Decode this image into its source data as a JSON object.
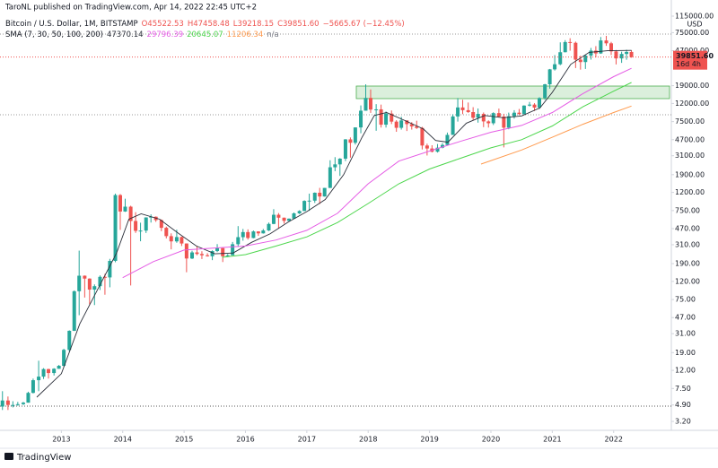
{
  "header": {
    "author_line": "TaroNL published on TradingView.com, Apr 14, 2022 22:45 UTC+2",
    "logo_text": "TradingView"
  },
  "chart_data": {
    "type": "candlestick",
    "symbol": "Bitcoin / U.S. Dollar, 1M, BITSTAMP",
    "readout": [
      "O45522.53",
      "H47458.48",
      "L39218.15",
      "C39851.60",
      "−5665.67 (−12.45%)"
    ],
    "indicator": {
      "name": "SMA (7, 30, 50, 100, 200)",
      "values": [
        "47370.14",
        "29796.39",
        "20645.07",
        "11206.34",
        "n/a"
      ]
    },
    "y_unit": "USD",
    "last_price_label": "39851.60",
    "countdown": "16d 4h",
    "log_scale": true,
    "up_color": "#26a69a",
    "down_color": "#ef5350",
    "xlim": [
      2012.0,
      2022.94
    ],
    "xticks": [
      2013,
      2014,
      2015,
      2016,
      2017,
      2018,
      2019,
      2020,
      2021,
      2022
    ],
    "ylim": [
      2.54,
      174600
    ],
    "yticks": [
      {
        "value": 3.2,
        "label": "3.20"
      },
      {
        "value": 4.9,
        "label": "4.90"
      },
      {
        "value": 7.5,
        "label": "7.50"
      },
      {
        "value": 12,
        "label": "12.00"
      },
      {
        "value": 19,
        "label": "19.00"
      },
      {
        "value": 31,
        "label": "31.00"
      },
      {
        "value": 47,
        "label": "47.00"
      },
      {
        "value": 75,
        "label": "75.00"
      },
      {
        "value": 120,
        "label": "120.00"
      },
      {
        "value": 190,
        "label": "190.00"
      },
      {
        "value": 310,
        "label": "310.00"
      },
      {
        "value": 470,
        "label": "470.00"
      },
      {
        "value": 750,
        "label": "750.00"
      },
      {
        "value": 1200,
        "label": "1200.00"
      },
      {
        "value": 1900,
        "label": "1900.00"
      },
      {
        "value": 3100,
        "label": "3100.00"
      },
      {
        "value": 4700,
        "label": "4700.00"
      },
      {
        "value": 7500,
        "label": "7500.00"
      },
      {
        "value": 12000,
        "label": "12000.00"
      },
      {
        "value": 19000,
        "label": "19000.00"
      },
      {
        "value": 47000,
        "label": "47000.00"
      },
      {
        "value": 75000,
        "label": "75000.00"
      },
      {
        "value": 115000,
        "label": "115000.00"
      }
    ],
    "candles": [
      [
        2012.04,
        4.7,
        7.0,
        4.3,
        5.5
      ],
      [
        2012.13,
        5.5,
        6.1,
        4.3,
        4.9
      ],
      [
        2012.21,
        4.9,
        5.4,
        4.6,
        4.9
      ],
      [
        2012.29,
        4.9,
        5.3,
        4.8,
        5.0
      ],
      [
        2012.38,
        5.0,
        5.3,
        4.9,
        5.2
      ],
      [
        2012.46,
        5.2,
        6.9,
        5.2,
        6.7
      ],
      [
        2012.54,
        6.7,
        9.7,
        6.6,
        9.3
      ],
      [
        2012.63,
        9.3,
        15.4,
        7.0,
        10.2
      ],
      [
        2012.71,
        10.2,
        12.7,
        9.6,
        12.4
      ],
      [
        2012.79,
        12.4,
        12.5,
        9.7,
        11.2
      ],
      [
        2012.88,
        11.2,
        12.7,
        10.5,
        12.5
      ],
      [
        2012.96,
        12.5,
        13.8,
        12.5,
        13.5
      ],
      [
        2013.04,
        13.5,
        21,
        13.2,
        20.4
      ],
      [
        2013.13,
        20.4,
        33.8,
        19.6,
        33.4
      ],
      [
        2013.21,
        33.4,
        95,
        33.2,
        93
      ],
      [
        2013.29,
        93,
        266,
        50,
        139
      ],
      [
        2013.38,
        139,
        140,
        79,
        129
      ],
      [
        2013.46,
        129,
        130,
        66,
        97
      ],
      [
        2013.54,
        97,
        111,
        65,
        106
      ],
      [
        2013.63,
        106,
        140,
        96,
        135
      ],
      [
        2013.71,
        135,
        146,
        85,
        133
      ],
      [
        2013.79,
        133,
        215,
        103,
        204
      ],
      [
        2013.88,
        204,
        1163,
        197,
        1120
      ],
      [
        2013.96,
        1120,
        1150,
        455,
        732
      ],
      [
        2014.04,
        732,
        1020,
        725,
        830
      ],
      [
        2014.13,
        830,
        850,
        108,
        573
      ],
      [
        2014.21,
        573,
        720,
        421,
        444
      ],
      [
        2014.29,
        444,
        548,
        339,
        447
      ],
      [
        2014.38,
        447,
        630,
        420,
        628
      ],
      [
        2014.46,
        628,
        680,
        550,
        640
      ],
      [
        2014.54,
        640,
        645,
        560,
        586
      ],
      [
        2014.63,
        586,
        597,
        440,
        480
      ],
      [
        2014.71,
        480,
        495,
        365,
        387
      ],
      [
        2014.79,
        387,
        416,
        275,
        338
      ],
      [
        2014.88,
        338,
        458,
        326,
        378
      ],
      [
        2014.96,
        378,
        382,
        300,
        320
      ],
      [
        2015.04,
        320,
        321,
        152,
        217
      ],
      [
        2015.13,
        217,
        265,
        214,
        254
      ],
      [
        2015.21,
        254,
        300,
        236,
        244
      ],
      [
        2015.29,
        244,
        262,
        214,
        236
      ],
      [
        2015.38,
        236,
        249,
        228,
        230
      ],
      [
        2015.46,
        230,
        268,
        208,
        263
      ],
      [
        2015.54,
        263,
        315,
        256,
        284
      ],
      [
        2015.63,
        284,
        285,
        198,
        230
      ],
      [
        2015.71,
        230,
        243,
        225,
        236
      ],
      [
        2015.79,
        236,
        333,
        236,
        314
      ],
      [
        2015.88,
        314,
        502,
        292,
        377
      ],
      [
        2015.96,
        377,
        466,
        344,
        430
      ],
      [
        2016.04,
        430,
        461,
        354,
        369
      ],
      [
        2016.13,
        369,
        448,
        366,
        437
      ],
      [
        2016.21,
        437,
        439,
        390,
        416
      ],
      [
        2016.29,
        416,
        466,
        413,
        448
      ],
      [
        2016.38,
        448,
        550,
        442,
        531
      ],
      [
        2016.46,
        531,
        778,
        527,
        673
      ],
      [
        2016.54,
        673,
        703,
        470,
        624
      ],
      [
        2016.63,
        624,
        626,
        535,
        575
      ],
      [
        2016.71,
        575,
        611,
        570,
        609
      ],
      [
        2016.79,
        609,
        714,
        604,
        698
      ],
      [
        2016.88,
        698,
        756,
        686,
        742
      ],
      [
        2016.96,
        742,
        979,
        740,
        963
      ],
      [
        2017.04,
        963,
        1163,
        745,
        970
      ],
      [
        2017.13,
        970,
        1200,
        915,
        1190
      ],
      [
        2017.21,
        1190,
        1350,
        890,
        1080
      ],
      [
        2017.29,
        1080,
        1350,
        1075,
        1348
      ],
      [
        2017.38,
        1348,
        2760,
        1348,
        2300
      ],
      [
        2017.46,
        2300,
        2990,
        2080,
        2480
      ],
      [
        2017.54,
        2480,
        2917,
        1840,
        2875
      ],
      [
        2017.63,
        2875,
        4770,
        2700,
        4735
      ],
      [
        2017.71,
        4735,
        4980,
        2950,
        4340
      ],
      [
        2017.79,
        4340,
        6470,
        4140,
        6450
      ],
      [
        2017.88,
        6450,
        11400,
        5550,
        9950
      ],
      [
        2017.96,
        9950,
        19666,
        9950,
        13850
      ],
      [
        2018.04,
        13850,
        17250,
        9400,
        10250
      ],
      [
        2018.13,
        10250,
        11790,
        5920,
        10300
      ],
      [
        2018.21,
        10300,
        11650,
        6430,
        6930
      ],
      [
        2018.29,
        6930,
        9750,
        6430,
        9240
      ],
      [
        2018.38,
        9240,
        10000,
        7040,
        7500
      ],
      [
        2018.46,
        7500,
        7780,
        5760,
        6390
      ],
      [
        2018.54,
        6390,
        8500,
        6100,
        7730
      ],
      [
        2018.63,
        7730,
        7750,
        5880,
        7030
      ],
      [
        2018.71,
        7030,
        7400,
        6100,
        6630
      ],
      [
        2018.79,
        6630,
        7680,
        6210,
        6370
      ],
      [
        2018.88,
        6370,
        6550,
        3650,
        4040
      ],
      [
        2018.96,
        4040,
        4240,
        3120,
        3740
      ],
      [
        2019.04,
        3740,
        4070,
        3380,
        3440
      ],
      [
        2019.13,
        3440,
        4200,
        3370,
        3820
      ],
      [
        2019.21,
        3820,
        4300,
        3760,
        4100
      ],
      [
        2019.29,
        4100,
        5650,
        4060,
        5320
      ],
      [
        2019.38,
        5320,
        9080,
        5320,
        8570
      ],
      [
        2019.46,
        8570,
        13800,
        7500,
        10820
      ],
      [
        2019.54,
        10820,
        13200,
        9100,
        10080
      ],
      [
        2019.63,
        10080,
        12300,
        9400,
        9600
      ],
      [
        2019.71,
        9600,
        10900,
        7700,
        8290
      ],
      [
        2019.79,
        8290,
        10540,
        7300,
        9150
      ],
      [
        2019.88,
        9150,
        9500,
        6500,
        7540
      ],
      [
        2019.96,
        7540,
        7750,
        6430,
        7190
      ],
      [
        2020.04,
        7190,
        9550,
        6870,
        9350
      ],
      [
        2020.13,
        9350,
        10500,
        8450,
        8540
      ],
      [
        2020.21,
        8540,
        9190,
        3850,
        6410
      ],
      [
        2020.29,
        6410,
        9470,
        6150,
        8620
      ],
      [
        2020.38,
        8620,
        10080,
        8100,
        9450
      ],
      [
        2020.46,
        9450,
        10400,
        8900,
        9140
      ],
      [
        2020.54,
        9140,
        11450,
        8950,
        11350
      ],
      [
        2020.63,
        11350,
        12480,
        11100,
        11650
      ],
      [
        2020.71,
        11650,
        12080,
        9880,
        10780
      ],
      [
        2020.79,
        10780,
        14100,
        10370,
        13800
      ],
      [
        2020.88,
        13800,
        19900,
        13200,
        19700
      ],
      [
        2020.96,
        19700,
        29300,
        17600,
        28990
      ],
      [
        2021.04,
        28990,
        42000,
        28100,
        33100
      ],
      [
        2021.13,
        33100,
        58350,
        32300,
        45200
      ],
      [
        2021.21,
        45200,
        61800,
        45000,
        58800
      ],
      [
        2021.29,
        58800,
        64900,
        47000,
        57700
      ],
      [
        2021.38,
        57700,
        59500,
        30000,
        37300
      ],
      [
        2021.46,
        37300,
        41300,
        28800,
        35040
      ],
      [
        2021.54,
        35040,
        42400,
        29300,
        41460
      ],
      [
        2021.63,
        41460,
        50500,
        37300,
        47100
      ],
      [
        2021.71,
        47100,
        52900,
        39600,
        43800
      ],
      [
        2021.79,
        43800,
        67000,
        43300,
        61300
      ],
      [
        2021.88,
        61300,
        69000,
        53300,
        56900
      ],
      [
        2021.96,
        56900,
        59100,
        42000,
        46200
      ],
      [
        2022.04,
        46200,
        47900,
        32950,
        38500
      ],
      [
        2022.13,
        38500,
        45800,
        34300,
        43200
      ],
      [
        2022.21,
        43200,
        48200,
        37200,
        45522.53
      ],
      [
        2022.29,
        45522.53,
        47458.48,
        39218.15,
        39851.6
      ]
    ],
    "series": [
      {
        "color": "#2a2e39",
        "x": [
          2012.6,
          2013.0,
          2013.3,
          2013.6,
          2013.9,
          2014.1,
          2014.3,
          2014.6,
          2014.9,
          2015.2,
          2015.5,
          2015.8,
          2016.1,
          2016.4,
          2016.7,
          2017.0,
          2017.3,
          2017.6,
          2017.9,
          2018.1,
          2018.3,
          2018.6,
          2018.9,
          2019.1,
          2019.3,
          2019.6,
          2019.9,
          2020.2,
          2020.5,
          2020.8,
          2021.0,
          2021.3,
          2021.6,
          2021.9,
          2022.29
        ],
        "values": [
          6,
          11,
          40,
          100,
          250,
          600,
          690,
          600,
          420,
          300,
          245,
          250,
          330,
          410,
          560,
          730,
          1000,
          1900,
          5000,
          8800,
          9500,
          7700,
          6200,
          4600,
          4400,
          7200,
          8800,
          8300,
          8700,
          10700,
          16000,
          33000,
          45000,
          47000,
          47370.14
        ]
      },
      {
        "color": "#e55ce5",
        "x": [
          2014.0,
          2014.5,
          2015.0,
          2015.5,
          2016.0,
          2016.5,
          2017.0,
          2017.5,
          2018.0,
          2018.5,
          2019.0,
          2019.5,
          2020.0,
          2020.5,
          2021.0,
          2021.5,
          2022.0,
          2022.29
        ],
        "values": [
          132,
          200,
          270,
          285,
          300,
          350,
          450,
          700,
          1500,
          2700,
          3500,
          4500,
          5700,
          6800,
          9500,
          15500,
          24000,
          29796.39
        ]
      },
      {
        "color": "#4cd64c",
        "x": [
          2015.62,
          2016.0,
          2016.5,
          2017.0,
          2017.5,
          2018.0,
          2018.5,
          2019.0,
          2019.5,
          2020.0,
          2020.5,
          2021.0,
          2021.5,
          2022.0,
          2022.29
        ],
        "values": [
          224,
          240,
          300,
          380,
          550,
          900,
          1500,
          2200,
          2900,
          3800,
          4700,
          6700,
          11000,
          16500,
          20645.07
        ]
      },
      {
        "color": "#ff9a4d",
        "x": [
          2019.84,
          2020.5,
          2021.0,
          2021.5,
          2022.0,
          2022.29
        ],
        "values": [
          2500,
          3600,
          5000,
          7000,
          9500,
          11206.34
        ]
      }
    ]
  }
}
